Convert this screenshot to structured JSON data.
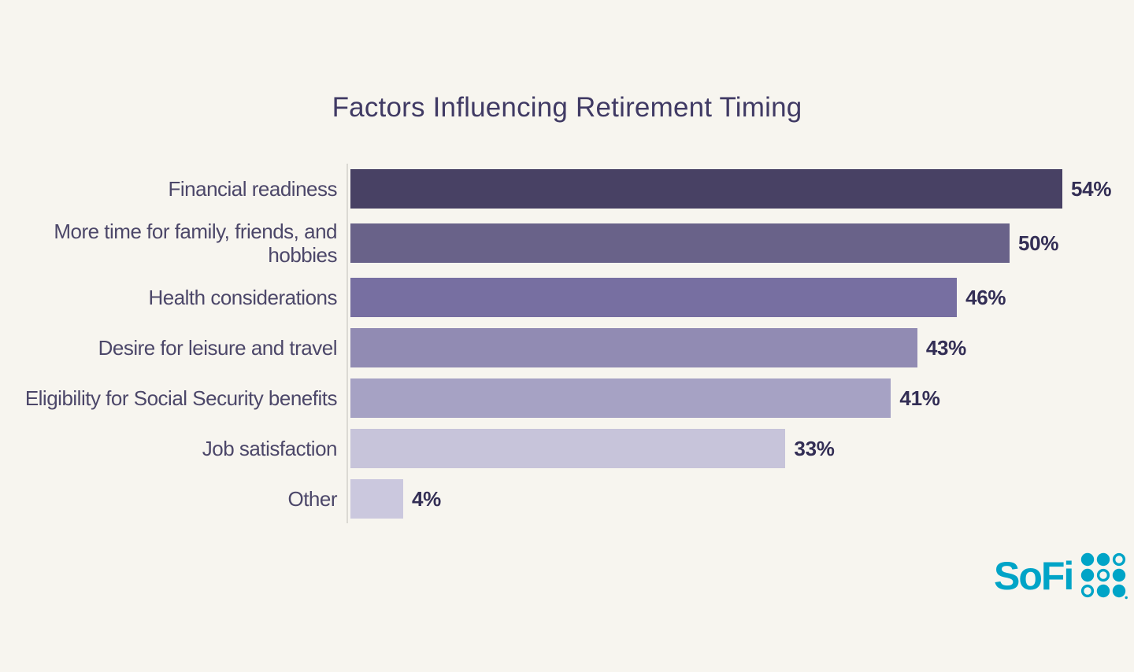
{
  "page": {
    "background_color": "#f7f5ef"
  },
  "chart_data": {
    "type": "bar",
    "orientation": "horizontal",
    "title": "Factors Influencing Retirement Timing",
    "categories": [
      "Financial readiness",
      "More time for family, friends, and hobbies",
      "Health considerations",
      "Desire for leisure and travel",
      "Eligibility for Social Security benefits",
      "Job satisfaction",
      "Other"
    ],
    "values": [
      54,
      50,
      46,
      43,
      41,
      33,
      4
    ],
    "value_labels": [
      "54%",
      "50%",
      "46%",
      "43%",
      "41%",
      "33%",
      "4%"
    ],
    "value_suffix": "%",
    "xlim": [
      0,
      54
    ],
    "xlabel": "",
    "ylabel": "",
    "grid": false,
    "legend": false,
    "bar_colors": [
      "#484164",
      "#696289",
      "#776fa1",
      "#918bb3",
      "#a6a2c4",
      "#c7c4da",
      "#cbc8de"
    ],
    "axis_line_color": "#dbd9d3",
    "title_color": "#403a64",
    "category_label_color": "#4c4769",
    "value_label_color": "#332e55"
  },
  "branding": {
    "logo_text": "SoFi",
    "logo_color": "#00a4c7",
    "logo_icon": "sofi-dot-grid-icon"
  }
}
